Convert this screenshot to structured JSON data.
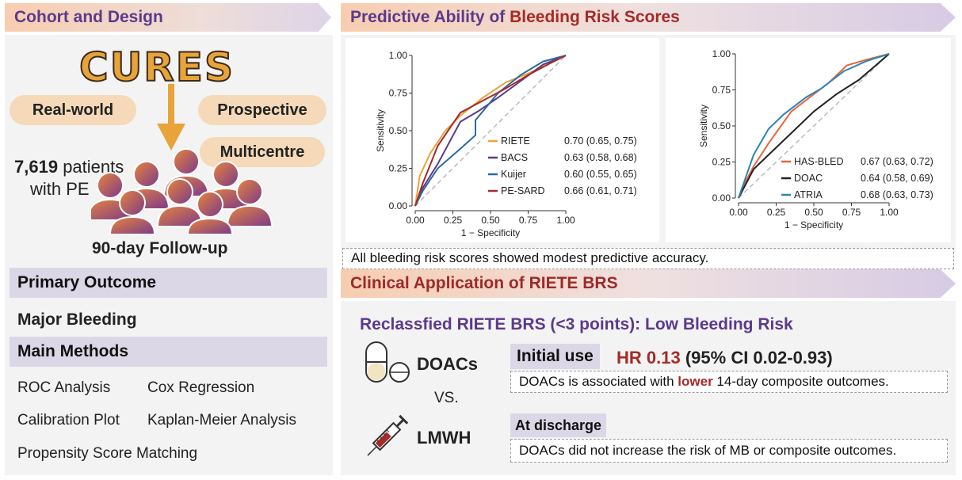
{
  "left": {
    "header": "Cohort  and Design",
    "logo": "CURES",
    "tags": [
      "Real-world",
      "Prospective",
      "Multicentre"
    ],
    "patients_count": "7,619",
    "patients_word": "patients",
    "patients_line2": "with PE",
    "followup": "90-day Follow-up",
    "primary_outcome_title": "Primary Outcome",
    "primary_outcome_value": "Major Bleeding",
    "methods_title": "Main Methods",
    "methods": [
      "ROC Analysis",
      "Cox Regression",
      "Calibration Plot",
      "Kaplan-Meier Analysis",
      "Propensity Score Matching"
    ]
  },
  "predictive": {
    "header_part1": "Predictive Ability of ",
    "header_part2": "Bleeding Risk Scores",
    "note": "All bleeding risk scores showed modest predictive accuracy."
  },
  "chart_data": [
    {
      "type": "line",
      "xlabel": "1 − Specificity",
      "ylabel": "Sensitivity",
      "xlim": [
        0,
        1
      ],
      "ylim": [
        0,
        1
      ],
      "ticks": [
        "0.00",
        "0.25",
        "0.50",
        "0.75",
        "1.00"
      ],
      "series": [
        {
          "name": "RIETE",
          "auc": "0.70 (0.65, 0.75)",
          "color": "#e8a33a",
          "x": [
            0,
            0.03,
            0.1,
            0.2,
            0.3,
            0.45,
            0.6,
            0.75,
            0.9,
            1.0
          ],
          "y": [
            0,
            0.2,
            0.35,
            0.5,
            0.6,
            0.72,
            0.82,
            0.88,
            0.95,
            1.0
          ]
        },
        {
          "name": "BACS",
          "auc": "0.63 (0.58, 0.68)",
          "color": "#5b3a8c",
          "x": [
            0,
            0.05,
            0.15,
            0.3,
            0.42,
            0.55,
            0.7,
            0.85,
            1.0
          ],
          "y": [
            0,
            0.12,
            0.28,
            0.56,
            0.63,
            0.72,
            0.83,
            0.94,
            1.0
          ]
        },
        {
          "name": "Kuijer",
          "auc": "0.60 (0.55, 0.65)",
          "color": "#2a6aa0",
          "x": [
            0,
            0.05,
            0.15,
            0.3,
            0.4,
            0.4,
            0.55,
            0.7,
            0.85,
            1.0
          ],
          "y": [
            0,
            0.1,
            0.25,
            0.38,
            0.47,
            0.57,
            0.75,
            0.87,
            0.96,
            1.0
          ]
        },
        {
          "name": "PE-SARD",
          "auc": "0.66 (0.61, 0.71)",
          "color": "#a52a2a",
          "x": [
            0,
            0.05,
            0.15,
            0.3,
            0.45,
            0.6,
            0.75,
            0.9,
            1.0
          ],
          "y": [
            0,
            0.15,
            0.4,
            0.62,
            0.7,
            0.78,
            0.87,
            0.95,
            1.0
          ]
        }
      ]
    },
    {
      "type": "line",
      "xlabel": "1 − Specificity",
      "ylabel": "Sensitivity",
      "xlim": [
        0,
        1
      ],
      "ylim": [
        0,
        1
      ],
      "ticks": [
        "0.00",
        "0.25",
        "0.50",
        "0.75",
        "1.00"
      ],
      "series": [
        {
          "name": "HAS-BLED",
          "auc": "0.67 (0.63, 0.72)",
          "color": "#e8643a",
          "x": [
            0,
            0.05,
            0.1,
            0.2,
            0.35,
            0.5,
            0.6,
            0.72,
            0.85,
            1.0
          ],
          "y": [
            0,
            0.12,
            0.22,
            0.38,
            0.6,
            0.72,
            0.8,
            0.92,
            0.96,
            1.0
          ]
        },
        {
          "name": "DOAC",
          "auc": "0.64 (0.58, 0.69)",
          "color": "#222222",
          "x": [
            0,
            0.05,
            0.1,
            0.2,
            0.35,
            0.5,
            0.65,
            0.8,
            1.0
          ],
          "y": [
            0,
            0.1,
            0.2,
            0.3,
            0.45,
            0.6,
            0.72,
            0.82,
            1.0
          ]
        },
        {
          "name": "ATRIA",
          "auc": "0.68 (0.63, 0.73)",
          "color": "#2a84b8",
          "x": [
            0,
            0.05,
            0.1,
            0.2,
            0.3,
            0.45,
            0.55,
            0.7,
            0.85,
            1.0
          ],
          "y": [
            0,
            0.15,
            0.3,
            0.48,
            0.58,
            0.7,
            0.76,
            0.88,
            0.95,
            1.0
          ]
        }
      ]
    }
  ],
  "clinical": {
    "header_part1": "Clinical Application of ",
    "header_part2": "RIETE BRS",
    "subtitle": "Reclassfied RIETE BRS (<3 points): Low Bleeding Risk",
    "drug1": "DOACs",
    "vs": "VS.",
    "drug2": "LMWH",
    "initial_label": "Initial use",
    "hr_value": "HR 0.13",
    "ci_value": "(95% CI 0.02-0.93)",
    "initial_text_pre": "DOACs is associated with ",
    "initial_text_em": "lower",
    "initial_text_post": " 14-day composite outcomes.",
    "discharge_label": "At discharge",
    "discharge_text": "DOACs did not increase the risk of MB or composite outcomes."
  },
  "colors": {
    "purple": "#5b3a8c",
    "red": "#a52a2a",
    "orange": "#e8a33a"
  }
}
